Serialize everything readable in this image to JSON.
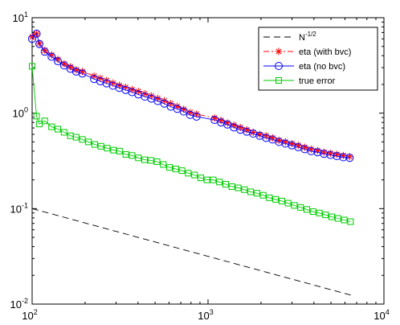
{
  "chart_data": {
    "type": "line",
    "title": "",
    "xlabel": "",
    "ylabel": "",
    "xscale": "log",
    "yscale": "log",
    "xlim": [
      100,
      10000
    ],
    "ylim": [
      0.01,
      10
    ],
    "grid": false,
    "legend_position": "top-right",
    "x_ticks": [
      {
        "base": "10",
        "exp": "2"
      },
      {
        "base": "10",
        "exp": "3"
      },
      {
        "base": "10",
        "exp": "4"
      }
    ],
    "y_ticks": [
      {
        "base": "10",
        "exp": "-2"
      },
      {
        "base": "10",
        "exp": "-1"
      },
      {
        "base": "10",
        "exp": "0"
      },
      {
        "base": "10",
        "exp": "1"
      }
    ],
    "legend": [
      {
        "label_base": "N",
        "label_exp": "-1/2"
      },
      {
        "label": "eta (with bvc)"
      },
      {
        "label": "eta (no bvc)"
      },
      {
        "label": "true error"
      }
    ],
    "series": [
      {
        "name": "N-1/2",
        "color": "#000000",
        "style": "dashed",
        "marker": "none",
        "x": [
          100,
          6600
        ],
        "y": [
          0.1,
          0.0123
        ]
      },
      {
        "name": "eta (with bvc)",
        "color": "#ff0000",
        "style": "dashdot",
        "marker": "star",
        "x": [
          100,
          106,
          110,
          118,
          129,
          140,
          152,
          165,
          178,
          193,
          225,
          244,
          265,
          288,
          313,
          340,
          370,
          402,
          437,
          476,
          518,
          564,
          614,
          668,
          727,
          791,
          860,
          1089,
          1185,
          1289,
          1403,
          1526,
          1660,
          1806,
          1965,
          2138,
          2326,
          2530,
          2752,
          2994,
          3257,
          3543,
          3854,
          4192,
          4560,
          4961,
          5397,
          5871,
          6387
        ],
        "y": [
          6.3,
          6.8,
          5.4,
          4.55,
          4.08,
          3.67,
          3.29,
          3.06,
          2.85,
          2.73,
          2.45,
          2.32,
          2.2,
          2.07,
          1.96,
          1.87,
          1.77,
          1.69,
          1.6,
          1.52,
          1.43,
          1.35,
          1.26,
          1.18,
          1.1,
          1.02,
          0.98,
          0.89,
          0.84,
          0.79,
          0.75,
          0.71,
          0.67,
          0.63,
          0.6,
          0.58,
          0.55,
          0.52,
          0.5,
          0.48,
          0.46,
          0.44,
          0.42,
          0.405,
          0.39,
          0.38,
          0.37,
          0.36,
          0.35
        ]
      },
      {
        "name": "eta (no bvc)",
        "color": "#0000ff",
        "style": "solid",
        "marker": "circle",
        "x": [
          100,
          106,
          110,
          118,
          129,
          140,
          152,
          165,
          178,
          193,
          225,
          244,
          265,
          288,
          313,
          340,
          370,
          402,
          437,
          476,
          518,
          564,
          614,
          668,
          727,
          791,
          860,
          1089,
          1185,
          1289,
          1403,
          1526,
          1660,
          1806,
          1965,
          2138,
          2326,
          2530,
          2752,
          2994,
          3257,
          3543,
          3854,
          4192,
          4560,
          4961,
          5397,
          5871,
          6387
        ],
        "y": [
          6.0,
          6.8,
          5.3,
          4.4,
          3.9,
          3.5,
          3.16,
          2.92,
          2.73,
          2.6,
          2.28,
          2.16,
          2.05,
          1.94,
          1.84,
          1.75,
          1.66,
          1.57,
          1.49,
          1.42,
          1.34,
          1.26,
          1.17,
          1.11,
          1.04,
          0.96,
          0.92,
          0.85,
          0.8,
          0.76,
          0.71,
          0.67,
          0.64,
          0.61,
          0.58,
          0.55,
          0.53,
          0.5,
          0.48,
          0.46,
          0.44,
          0.42,
          0.4,
          0.39,
          0.375,
          0.365,
          0.355,
          0.345,
          0.34
        ]
      },
      {
        "name": "true error",
        "color": "#00cc00",
        "style": "solid",
        "marker": "square",
        "x": [
          100,
          106,
          110,
          118,
          129,
          140,
          152,
          165,
          178,
          193,
          209,
          227,
          246,
          267,
          290,
          314,
          341,
          370,
          402,
          436,
          473,
          513,
          557,
          604,
          656,
          711,
          772,
          838,
          909,
          986,
          1070,
          1161,
          1260,
          1367,
          1484,
          1610,
          1747,
          1896,
          2057,
          2232,
          2422,
          2628,
          2852,
          3095,
          3358,
          3644,
          3954,
          4291,
          4656,
          5052,
          5482,
          5949,
          6455
        ],
        "y": [
          3.1,
          0.93,
          0.77,
          0.83,
          0.72,
          0.68,
          0.63,
          0.58,
          0.56,
          0.53,
          0.5,
          0.47,
          0.45,
          0.43,
          0.41,
          0.4,
          0.37,
          0.36,
          0.34,
          0.325,
          0.32,
          0.31,
          0.29,
          0.27,
          0.26,
          0.25,
          0.235,
          0.225,
          0.21,
          0.2,
          0.2,
          0.19,
          0.18,
          0.17,
          0.165,
          0.158,
          0.15,
          0.145,
          0.138,
          0.13,
          0.125,
          0.12,
          0.114,
          0.108,
          0.103,
          0.098,
          0.093,
          0.09,
          0.086,
          0.082,
          0.079,
          0.076,
          0.073
        ]
      }
    ]
  }
}
